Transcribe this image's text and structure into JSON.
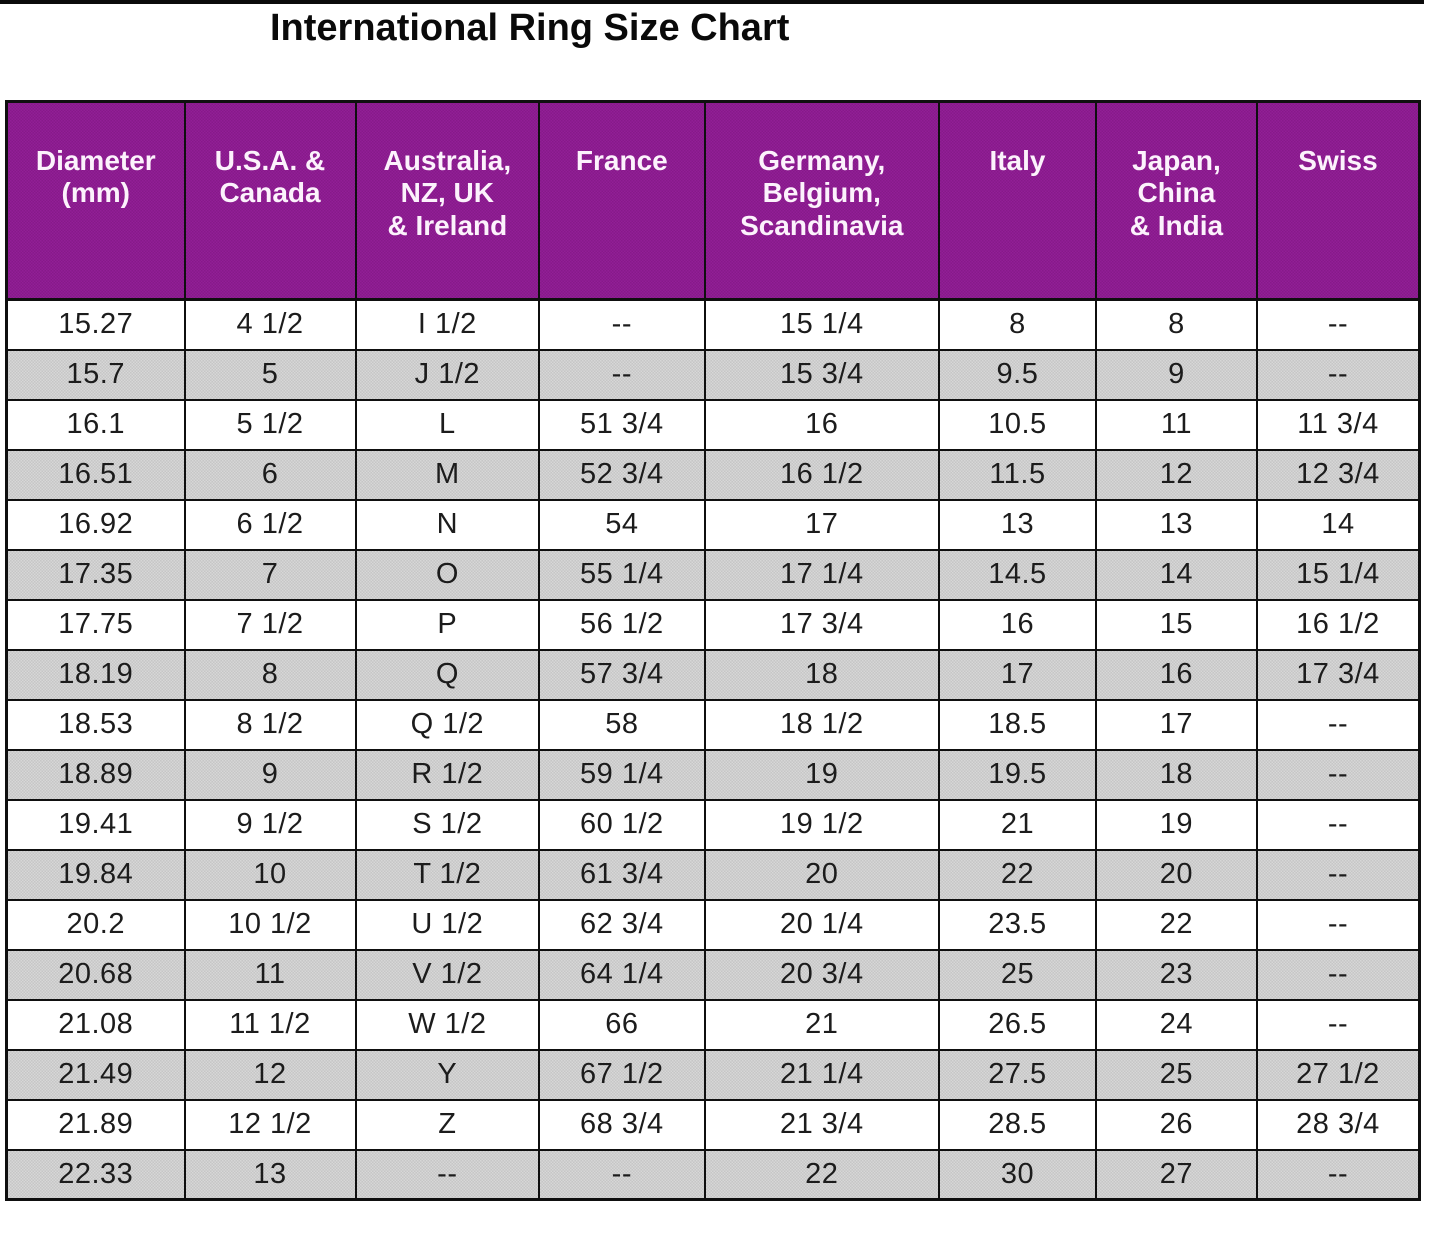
{
  "page": {
    "title": "International Ring Size Chart"
  },
  "chart_data": {
    "type": "table",
    "title": "International Ring Size Chart",
    "columns": [
      {
        "id": "diameter-mm",
        "label": "Diameter\n(mm)"
      },
      {
        "id": "usa-canada",
        "label": "U.S.A. &\nCanada"
      },
      {
        "id": "australia-nz-uk-ireland",
        "label": "Australia,\nNZ, UK\n& Ireland"
      },
      {
        "id": "france",
        "label": "France"
      },
      {
        "id": "germany-belgium-scandinavia",
        "label": "Germany,\nBelgium,\nScandinavia"
      },
      {
        "id": "italy",
        "label": "Italy"
      },
      {
        "id": "japan-china-india",
        "label": "Japan,\nChina\n& India"
      },
      {
        "id": "swiss",
        "label": "Swiss"
      }
    ],
    "rows": [
      [
        "15.27",
        "4 1/2",
        "I 1/2",
        "--",
        "15 1/4",
        "8",
        "8",
        "--"
      ],
      [
        "15.7",
        "5",
        "J 1/2",
        "--",
        "15 3/4",
        "9.5",
        "9",
        "--"
      ],
      [
        "16.1",
        "5 1/2",
        "L",
        "51 3/4",
        "16",
        "10.5",
        "11",
        "11 3/4"
      ],
      [
        "16.51",
        "6",
        "M",
        "52 3/4",
        "16 1/2",
        "11.5",
        "12",
        "12 3/4"
      ],
      [
        "16.92",
        "6 1/2",
        "N",
        "54",
        "17",
        "13",
        "13",
        "14"
      ],
      [
        "17.35",
        "7",
        "O",
        "55 1/4",
        "17 1/4",
        "14.5",
        "14",
        "15 1/4"
      ],
      [
        "17.75",
        "7 1/2",
        "P",
        "56 1/2",
        "17 3/4",
        "16",
        "15",
        "16 1/2"
      ],
      [
        "18.19",
        "8",
        "Q",
        "57 3/4",
        "18",
        "17",
        "16",
        "17 3/4"
      ],
      [
        "18.53",
        "8 1/2",
        "Q 1/2",
        "58",
        "18 1/2",
        "18.5",
        "17",
        "--"
      ],
      [
        "18.89",
        "9",
        "R 1/2",
        "59 1/4",
        "19",
        "19.5",
        "18",
        "--"
      ],
      [
        "19.41",
        "9 1/2",
        "S 1/2",
        "60 1/2",
        "19 1/2",
        "21",
        "19",
        "--"
      ],
      [
        "19.84",
        "10",
        "T 1/2",
        "61 3/4",
        "20",
        "22",
        "20",
        "--"
      ],
      [
        "20.2",
        "10 1/2",
        "U 1/2",
        "62 3/4",
        "20 1/4",
        "23.5",
        "22",
        "--"
      ],
      [
        "20.68",
        "11",
        "V 1/2",
        "64 1/4",
        "20 3/4",
        "25",
        "23",
        "--"
      ],
      [
        "21.08",
        "11 1/2",
        "W 1/2",
        "66",
        "21",
        "26.5",
        "24",
        "--"
      ],
      [
        "21.49",
        "12",
        "Y",
        "67 1/2",
        "21 1/4",
        "27.5",
        "25",
        "27 1/2"
      ],
      [
        "21.89",
        "12 1/2",
        "Z",
        "68 3/4",
        "21 3/4",
        "28.5",
        "26",
        "28 3/4"
      ],
      [
        "22.33",
        "13",
        "--",
        "--",
        "22",
        "30",
        "27",
        "--"
      ]
    ],
    "colors": {
      "header_bg": "#8B1C8E",
      "header_text": "#FFFFFF",
      "row_bg": "#FFFFFF",
      "row_alt_bg": "#CECECE",
      "border": "#0F0F0F",
      "cell_text": "#1C1C1C",
      "title_text": "#0A0A0A"
    },
    "layout": {
      "legend": "none",
      "grid": "all cell borders on",
      "striping": "rows alternate white / dotted gray starting gray on 2nd row",
      "header_align": "top-center",
      "cell_align": "center"
    }
  }
}
